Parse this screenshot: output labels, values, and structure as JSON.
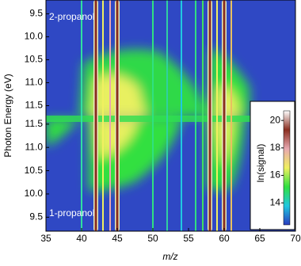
{
  "chart_data": {
    "type": "heatmap",
    "x_label": "m/z",
    "y_label": "Photon Energy (eV)",
    "panel_labels": [
      "2-propanol",
      "1-propanol"
    ],
    "xlim": [
      35,
      70
    ],
    "xticks": [
      35,
      40,
      45,
      50,
      55,
      60,
      65,
      70
    ],
    "top_ylim": [
      9.2,
      11.75
    ],
    "bottom_ylim": [
      9.2,
      11.65
    ],
    "yticks": [
      9.5,
      {
        "value": 10.0,
        "label": "10.0"
      },
      10.5,
      {
        "value": 11.0,
        "label": "11.0"
      },
      11.5
    ],
    "colorbar_label": "ln(signal)",
    "clim": [
      12.4,
      20.7
    ],
    "cticks": [
      14,
      16,
      18,
      20
    ],
    "colormap": [
      "#2a3cc0",
      "#20c8e0",
      "#30e040",
      "#f0f060",
      "#e8a8b0",
      "#8a2e20",
      "#ffffff"
    ],
    "peaks": [
      {
        "mz": 40,
        "color": "#30e0a0"
      },
      {
        "mz": 42,
        "color": "#8a2e20"
      },
      {
        "mz": 43,
        "color": "#f0f060"
      },
      {
        "mz": 44,
        "color": "#e8a8b0"
      },
      {
        "mz": 45,
        "color": "#8a2e20"
      },
      {
        "mz": 50,
        "color": "#30e080"
      },
      {
        "mz": 52,
        "color": "#30d0a0"
      },
      {
        "mz": 54,
        "color": "#20c8e0"
      },
      {
        "mz": 56,
        "color": "#30e080"
      },
      {
        "mz": 57,
        "color": "#40e060"
      },
      {
        "mz": 58,
        "color": "#8a2e20"
      },
      {
        "mz": 59,
        "color": "#f0f060"
      },
      {
        "mz": 60,
        "color": "#8a2e20"
      },
      {
        "mz": 61,
        "color": "#e8c060"
      }
    ]
  }
}
